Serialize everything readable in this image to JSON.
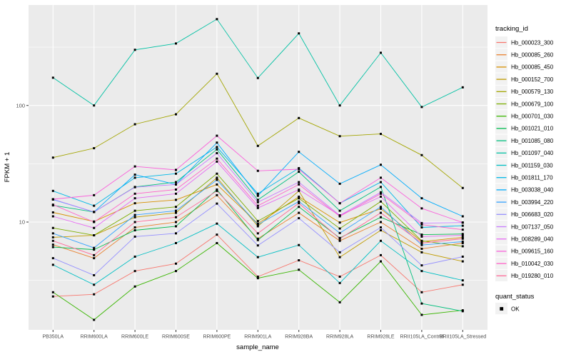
{
  "colors": {
    "page_bg": "#FFFFFF",
    "panel_bg": "#EBEBEB",
    "grid_line": "#FFFFFF",
    "legend_key_bg": "#F2F2F2",
    "tick_label": "#4D4D4D",
    "axis_title": "#000000",
    "marker": "#000000"
  },
  "chart_data": {
    "type": "line",
    "title": "",
    "xlabel": "sample_name",
    "ylabel": "FPKM + 1",
    "grid": true,
    "legend_position": "right",
    "marker": "filled-black-square",
    "y_axis": {
      "scale": "log10",
      "tick_labels": [
        "10",
        "100"
      ],
      "major_ticks": [
        10,
        100
      ],
      "minor_ticks": [
        3.162,
        31.62,
        316.2
      ],
      "range_approx": [
        1.2,
        720
      ]
    },
    "categories": [
      "PB350LA",
      "RRIM600LA",
      "RRIM600LE",
      "RRIM600SE",
      "RRIM600PE",
      "RRIM901LA",
      "RRIM928BA",
      "RRIM928LA",
      "RRIM928LE",
      "RRII105LA_Control",
      "RRII105LA_Stressed"
    ],
    "legend_title": "tracking_id",
    "status_legend": {
      "title": "quant_status",
      "items": [
        {
          "label": "OK"
        }
      ]
    },
    "series": [
      {
        "name": "Hb_000023_300",
        "color": "#F8766D",
        "values": [
          2.3,
          2.4,
          3.8,
          4.4,
          7.8,
          3.4,
          4.7,
          3.4,
          5.2,
          2.5,
          2.9
        ]
      },
      {
        "name": "Hb_000085_260",
        "color": "#EA8331",
        "values": [
          6.4,
          4.9,
          9.0,
          10.0,
          17.0,
          7.2,
          12.0,
          6.9,
          10.0,
          5.9,
          6.6
        ]
      },
      {
        "name": "Hb_000085_450",
        "color": "#D89000",
        "values": [
          12.1,
          10.1,
          14.5,
          15.5,
          21.0,
          9.7,
          16.5,
          9.9,
          13.0,
          6.8,
          7.4
        ]
      },
      {
        "name": "Hb_000152_700",
        "color": "#C09B00",
        "values": [
          7.4,
          7.7,
          11.0,
          12.0,
          24.0,
          9.2,
          18.5,
          5.0,
          8.5,
          5.5,
          4.6
        ]
      },
      {
        "name": "Hb_000579_130",
        "color": "#A3A500",
        "values": [
          35.7,
          43.0,
          69.0,
          84.0,
          187.0,
          45.0,
          78.0,
          54.5,
          57.0,
          37.5,
          19.6
        ]
      },
      {
        "name": "Hb_000679_100",
        "color": "#7CAE00",
        "values": [
          8.9,
          7.7,
          12.5,
          13.5,
          26.0,
          10.2,
          16.0,
          8.8,
          15.0,
          6.9,
          6.2
        ]
      },
      {
        "name": "Hb_000701_030",
        "color": "#39B600",
        "values": [
          2.5,
          1.45,
          2.8,
          3.8,
          6.6,
          3.3,
          3.9,
          2.05,
          4.6,
          1.6,
          1.75
        ]
      },
      {
        "name": "Hb_001021_010",
        "color": "#00BB4E",
        "values": [
          6.1,
          5.8,
          8.5,
          9.2,
          19.0,
          7.0,
          13.5,
          7.3,
          11.0,
          7.8,
          7.9
        ]
      },
      {
        "name": "Hb_001085_080",
        "color": "#00BF7D",
        "values": [
          13.9,
          12.2,
          20.0,
          22.0,
          42.0,
          15.5,
          27.0,
          12.5,
          20.0,
          2.0,
          1.72
        ]
      },
      {
        "name": "Hb_001097_040",
        "color": "#00C1A3",
        "values": [
          173,
          100,
          300,
          340,
          550,
          172,
          415,
          100,
          283,
          97,
          143
        ]
      },
      {
        "name": "Hb_001159_030",
        "color": "#00BFC4",
        "values": [
          4.3,
          2.9,
          5.05,
          6.6,
          9.7,
          5.0,
          6.35,
          3.0,
          6.9,
          3.8,
          3.16
        ]
      },
      {
        "name": "Hb_001811_170",
        "color": "#00B8E7",
        "values": [
          18.5,
          13.8,
          24.0,
          26.0,
          44.0,
          17.5,
          29.0,
          14.5,
          22.0,
          9.0,
          9.3
        ]
      },
      {
        "name": "Hb_003038_040",
        "color": "#00ACFC",
        "values": [
          15.6,
          12.2,
          25.5,
          21.0,
          48.0,
          16.8,
          40.0,
          21.3,
          31.0,
          16.0,
          11.2
        ]
      },
      {
        "name": "Hb_003994_220",
        "color": "#35A2FF",
        "values": [
          8.0,
          6.0,
          11.5,
          12.5,
          23.0,
          9.5,
          15.0,
          8.05,
          13.5,
          6.35,
          6.8
        ]
      },
      {
        "name": "Hb_006683_020",
        "color": "#9590FF",
        "values": [
          4.9,
          3.5,
          7.5,
          8.0,
          14.4,
          6.3,
          10.8,
          5.5,
          9.0,
          4.25,
          5.05
        ]
      },
      {
        "name": "Hb_007137_050",
        "color": "#C77CFF",
        "values": [
          15.7,
          12.2,
          19.9,
          21.0,
          39.0,
          14.8,
          22.0,
          11.4,
          18.0,
          9.8,
          9.9
        ]
      },
      {
        "name": "Hb_008289_040",
        "color": "#E76BF3",
        "values": [
          11.2,
          8.9,
          16.0,
          17.5,
          33.0,
          13.2,
          19.0,
          11.4,
          16.5,
          7.5,
          7.7
        ]
      },
      {
        "name": "Hb_009615_160",
        "color": "#FA62DB",
        "values": [
          15.7,
          17.0,
          30.0,
          28.0,
          55.0,
          27.5,
          28.4,
          14.5,
          24.0,
          13.1,
          9.9
        ]
      },
      {
        "name": "Hb_010042_030",
        "color": "#FF61C9",
        "values": [
          14.1,
          10.0,
          17.5,
          19.0,
          35.0,
          13.8,
          21.0,
          11.2,
          17.5,
          9.5,
          8.6
        ]
      },
      {
        "name": "Hb_019280_010",
        "color": "#FF6A98",
        "values": [
          6.9,
          5.2,
          10.0,
          11.0,
          18.5,
          8.0,
          14.5,
          7.2,
          12.0,
          6.6,
          7.2
        ]
      }
    ]
  }
}
